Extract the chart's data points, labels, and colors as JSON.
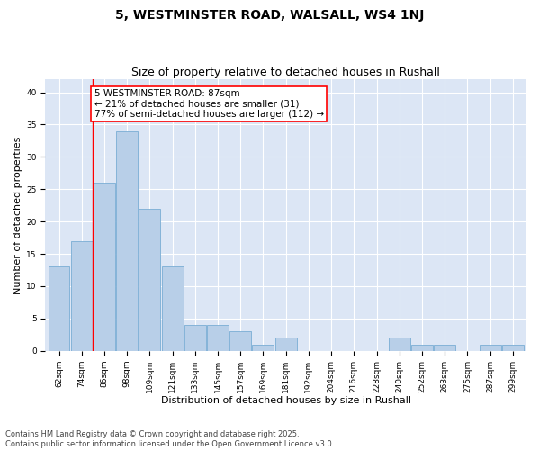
{
  "title1": "5, WESTMINSTER ROAD, WALSALL, WS4 1NJ",
  "title2": "Size of property relative to detached houses in Rushall",
  "xlabel": "Distribution of detached houses by size in Rushall",
  "ylabel": "Number of detached properties",
  "categories": [
    "62sqm",
    "74sqm",
    "86sqm",
    "98sqm",
    "109sqm",
    "121sqm",
    "133sqm",
    "145sqm",
    "157sqm",
    "169sqm",
    "181sqm",
    "192sqm",
    "204sqm",
    "216sqm",
    "228sqm",
    "240sqm",
    "252sqm",
    "263sqm",
    "275sqm",
    "287sqm",
    "299sqm"
  ],
  "values": [
    13,
    17,
    26,
    34,
    22,
    13,
    4,
    4,
    3,
    1,
    2,
    0,
    0,
    0,
    0,
    2,
    1,
    1,
    0,
    1,
    1
  ],
  "bar_color": "#b8cfe8",
  "bar_edge_color": "#7aadd4",
  "annotation_text": "5 WESTMINSTER ROAD: 87sqm\n← 21% of detached houses are smaller (31)\n77% of semi-detached houses are larger (112) →",
  "ylim": [
    0,
    42
  ],
  "yticks": [
    0,
    5,
    10,
    15,
    20,
    25,
    30,
    35,
    40
  ],
  "background_color": "#dce6f5",
  "footer_text": "Contains HM Land Registry data © Crown copyright and database right 2025.\nContains public sector information licensed under the Open Government Licence v3.0.",
  "title1_fontsize": 10,
  "title2_fontsize": 9,
  "xlabel_fontsize": 8,
  "ylabel_fontsize": 8,
  "tick_fontsize": 6.5,
  "annotation_fontsize": 7.5,
  "footer_fontsize": 6
}
